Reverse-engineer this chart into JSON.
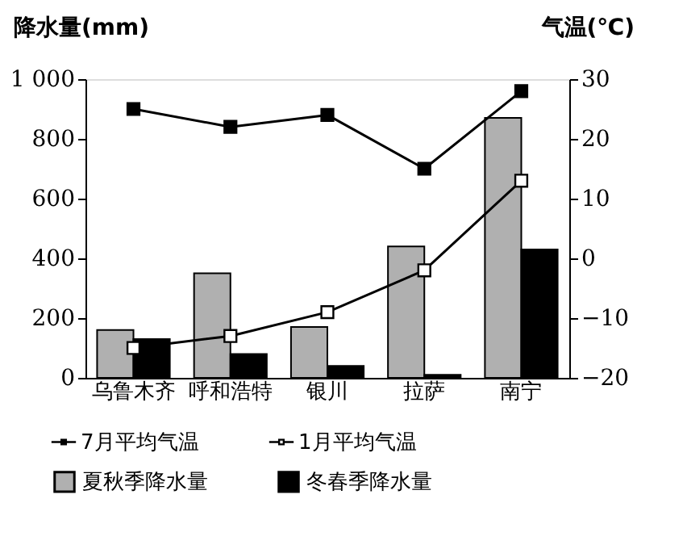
{
  "chart_data": {
    "type": "bar",
    "categories": [
      "乌鲁木齐",
      "呼和浩特",
      "银川",
      "拉萨",
      "南宁"
    ],
    "ylabel": "降水量(mm)",
    "y2label": "气温(℃)",
    "ylim": [
      0,
      1000
    ],
    "yticks": [
      0,
      200,
      400,
      600,
      800,
      {
        "value": 1000,
        "label": "1 000"
      }
    ],
    "y2lim": [
      -20,
      30
    ],
    "y2ticks": [
      -20,
      -10,
      0,
      10,
      20,
      30
    ],
    "series": [
      {
        "name": "7月平均气温",
        "type": "line",
        "axis": "y2",
        "color": "#000000",
        "marker": "square",
        "values": [
          25,
          22,
          24,
          15,
          28
        ]
      },
      {
        "name": "1月平均气温",
        "type": "line",
        "axis": "y2",
        "color": "#ffffff",
        "marker": "square",
        "values": [
          -15,
          -13,
          -9,
          -2,
          13
        ]
      },
      {
        "name": "夏秋季降水量",
        "color": "#b0b0b0",
        "values": [
          160,
          350,
          170,
          440,
          870
        ]
      },
      {
        "name": "冬春季降水量",
        "color": "#000000",
        "values": [
          130,
          80,
          40,
          10,
          430
        ]
      }
    ],
    "grid": false,
    "legend": "bottom"
  }
}
